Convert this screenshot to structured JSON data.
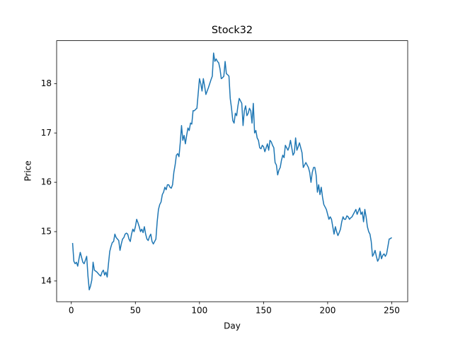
{
  "chart_data": {
    "type": "line",
    "title": "Stock32",
    "x_label": "Day",
    "y_label": "Price",
    "color": "#1f77b4",
    "x": [
      1,
      2,
      3,
      4,
      5,
      6,
      7,
      8,
      9,
      10,
      11,
      12,
      13,
      14,
      15,
      16,
      17,
      18,
      19,
      20,
      21,
      22,
      23,
      24,
      25,
      26,
      27,
      28,
      29,
      30,
      31,
      32,
      33,
      34,
      35,
      36,
      37,
      38,
      39,
      40,
      41,
      42,
      43,
      44,
      45,
      46,
      47,
      48,
      49,
      50,
      51,
      52,
      53,
      54,
      55,
      56,
      57,
      58,
      59,
      60,
      61,
      62,
      63,
      64,
      65,
      66,
      67,
      68,
      69,
      70,
      71,
      72,
      73,
      74,
      75,
      76,
      77,
      78,
      79,
      80,
      81,
      82,
      83,
      84,
      85,
      86,
      87,
      88,
      89,
      90,
      91,
      92,
      93,
      94,
      95,
      96,
      97,
      98,
      99,
      100,
      101,
      102,
      103,
      104,
      105,
      106,
      107,
      108,
      109,
      110,
      111,
      112,
      113,
      114,
      115,
      116,
      117,
      118,
      119,
      120,
      121,
      122,
      123,
      124,
      125,
      126,
      127,
      128,
      129,
      130,
      131,
      132,
      133,
      134,
      135,
      136,
      137,
      138,
      139,
      140,
      141,
      142,
      143,
      144,
      145,
      146,
      147,
      148,
      149,
      150,
      151,
      152,
      153,
      154,
      155,
      156,
      157,
      158,
      159,
      160,
      161,
      162,
      163,
      164,
      165,
      166,
      167,
      168,
      169,
      170,
      171,
      172,
      173,
      174,
      175,
      176,
      177,
      178,
      179,
      180,
      181,
      182,
      183,
      184,
      185,
      186,
      187,
      188,
      189,
      190,
      191,
      192,
      193,
      194,
      195,
      196,
      197,
      198,
      199,
      200,
      201,
      202,
      203,
      204,
      205,
      206,
      207,
      208,
      209,
      210,
      211,
      212,
      213,
      214,
      215,
      216,
      217,
      218,
      219,
      220,
      221,
      222,
      223,
      224,
      225,
      226,
      227,
      228,
      229,
      230,
      231,
      232,
      233,
      234,
      235,
      236,
      237,
      238,
      239,
      240,
      241,
      242,
      243,
      244,
      245,
      246,
      247,
      248,
      249,
      250
    ],
    "values": [
      14.77,
      14.4,
      14.35,
      14.38,
      14.3,
      14.45,
      14.58,
      14.48,
      14.38,
      14.35,
      14.42,
      14.5,
      14.1,
      13.82,
      13.9,
      14.02,
      14.38,
      14.22,
      14.2,
      14.18,
      14.15,
      14.12,
      14.1,
      14.18,
      14.22,
      14.12,
      14.18,
      14.08,
      14.35,
      14.6,
      14.7,
      14.78,
      14.8,
      14.95,
      14.88,
      14.85,
      14.82,
      14.62,
      14.75,
      14.85,
      14.88,
      14.95,
      14.97,
      14.95,
      14.85,
      14.8,
      14.95,
      15.05,
      15.0,
      15.1,
      15.25,
      15.18,
      15.1,
      15.0,
      15.05,
      14.98,
      15.1,
      14.95,
      14.85,
      14.82,
      14.9,
      14.95,
      14.8,
      14.75,
      14.8,
      14.85,
      15.2,
      15.45,
      15.55,
      15.6,
      15.75,
      15.8,
      15.9,
      15.85,
      15.95,
      15.95,
      15.9,
      15.88,
      15.95,
      16.2,
      16.35,
      16.55,
      16.58,
      16.52,
      16.8,
      17.15,
      16.85,
      16.95,
      16.78,
      16.95,
      17.1,
      17.05,
      17.2,
      17.18,
      17.45,
      17.45,
      17.48,
      17.5,
      17.8,
      18.1,
      18.0,
      17.85,
      18.1,
      17.95,
      17.78,
      17.85,
      17.92,
      18.0,
      18.08,
      18.15,
      18.62,
      18.45,
      18.5,
      18.45,
      18.42,
      18.3,
      18.1,
      18.12,
      18.15,
      18.45,
      18.2,
      18.18,
      18.15,
      17.7,
      17.5,
      17.25,
      17.2,
      17.4,
      17.35,
      17.55,
      17.7,
      17.65,
      17.6,
      17.15,
      17.45,
      17.55,
      17.35,
      17.4,
      17.5,
      17.45,
      17.2,
      17.6,
      17.0,
      17.05,
      16.9,
      16.85,
      16.7,
      16.68,
      16.75,
      16.72,
      16.62,
      16.7,
      16.78,
      16.65,
      16.85,
      16.82,
      16.75,
      16.7,
      16.4,
      16.35,
      16.15,
      16.25,
      16.3,
      16.45,
      16.55,
      16.5,
      16.75,
      16.7,
      16.65,
      16.72,
      16.85,
      16.7,
      16.55,
      16.6,
      16.9,
      16.65,
      16.72,
      16.8,
      16.7,
      16.6,
      16.3,
      16.35,
      16.4,
      16.35,
      16.3,
      16.2,
      16.0,
      16.2,
      16.3,
      16.3,
      16.15,
      15.8,
      15.95,
      15.75,
      15.9,
      15.7,
      15.55,
      15.5,
      15.45,
      15.35,
      15.25,
      15.3,
      15.25,
      15.1,
      14.95,
      15.1,
      15.0,
      14.92,
      14.98,
      15.05,
      15.2,
      15.3,
      15.25,
      15.25,
      15.32,
      15.3,
      15.25,
      15.28,
      15.3,
      15.35,
      15.4,
      15.45,
      15.35,
      15.42,
      15.48,
      15.35,
      15.4,
      15.2,
      15.45,
      15.3,
      15.1,
      15.0,
      14.95,
      14.8,
      14.5,
      14.55,
      14.62,
      14.5,
      14.4,
      14.45,
      14.6,
      14.45,
      14.52,
      14.55,
      14.5,
      14.55,
      14.7,
      14.85,
      14.86,
      14.88
    ],
    "xlim": [
      -11.45,
      262.45
    ],
    "ylim": [
      13.58,
      18.87
    ],
    "xticks": [
      0,
      50,
      100,
      150,
      200,
      250
    ],
    "yticks": [
      14,
      15,
      16,
      17,
      18
    ]
  }
}
